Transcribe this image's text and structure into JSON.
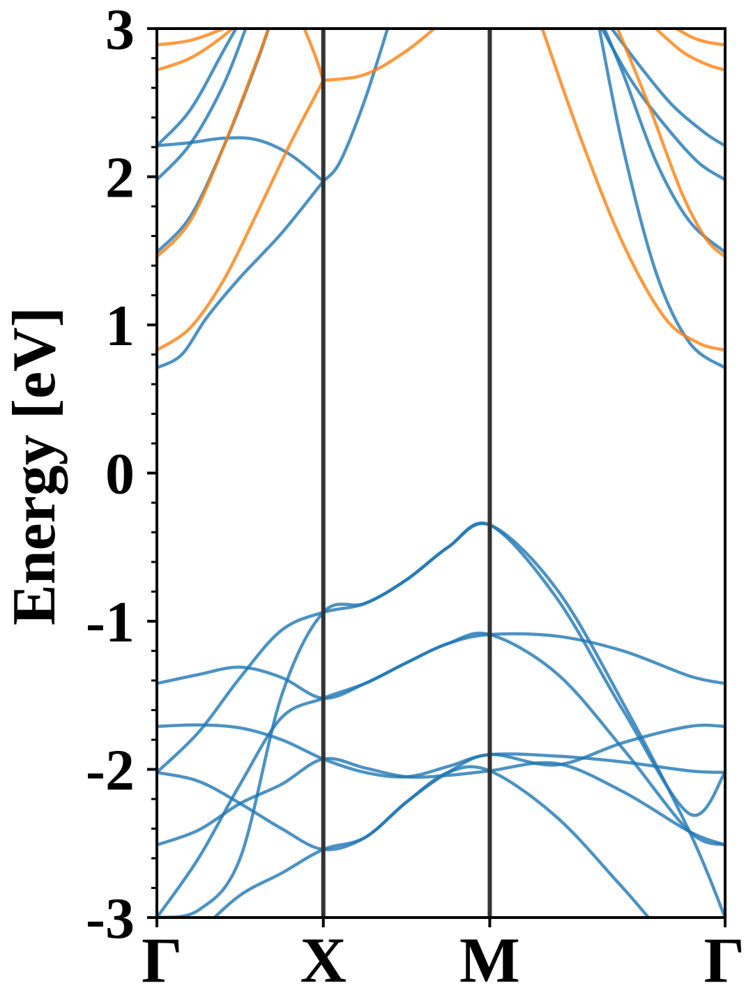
{
  "chart_data": {
    "type": "line",
    "title": "",
    "xlabel": "",
    "ylabel": "Energy [eV]",
    "ylim": [
      -3,
      3
    ],
    "yticks": [
      "3",
      "2",
      "1",
      "0",
      "-1",
      "-2",
      "-3"
    ],
    "ytick_values": [
      3,
      2,
      1,
      0,
      -1,
      -2,
      -3
    ],
    "minor_ytick_step": 0.2,
    "kpath_labels": [
      "Γ",
      "X",
      "M",
      "Γ"
    ],
    "kpath_positions": [
      0,
      1,
      2,
      3.414
    ],
    "grid": false,
    "legend": "none",
    "colors": {
      "valence": "#1f77b4",
      "conduction_blue": "#1f77b4",
      "conduction_orange": "#ff7f0e",
      "kline": "#333333",
      "axis": "#000000"
    },
    "series": [
      {
        "group": "valence",
        "x": [
          0,
          0.25,
          0.5,
          0.75,
          1,
          1.25,
          1.5,
          1.75,
          2,
          2.4,
          2.8,
          3.2,
          3.414
        ],
        "y": [
          -1.42,
          -1.36,
          -1.31,
          -1.38,
          -1.52,
          -1.42,
          -1.28,
          -1.15,
          -1.09,
          -1.1,
          -1.2,
          -1.37,
          -1.42
        ]
      },
      {
        "group": "valence",
        "x": [
          0,
          0.25,
          0.5,
          0.75,
          1,
          1.25,
          1.5,
          1.75,
          2,
          2.4,
          2.8,
          3.2,
          3.414
        ],
        "y": [
          -1.71,
          -1.7,
          -1.72,
          -1.8,
          -1.93,
          -2.02,
          -2.05,
          -1.98,
          -1.9,
          -1.91,
          -1.95,
          -2.01,
          -2.02
        ]
      },
      {
        "group": "valence",
        "x": [
          0,
          0.25,
          0.5,
          0.75,
          1,
          1.25,
          1.5,
          1.75,
          2,
          2.4,
          2.8,
          3.2,
          3.414
        ],
        "y": [
          -2.02,
          -2.08,
          -2.23,
          -2.4,
          -2.54,
          -2.46,
          -2.22,
          -2.02,
          -1.9,
          -1.97,
          -1.82,
          -1.71,
          -1.71
        ]
      },
      {
        "group": "valence",
        "x": [
          0,
          0.25,
          0.5,
          0.75,
          1,
          1.25,
          1.5,
          1.75,
          2,
          2.4,
          2.8,
          3.2,
          3.414
        ],
        "y": [
          -2.51,
          -2.41,
          -2.23,
          -2.1,
          -1.93,
          -1.99,
          -2.05,
          -2.04,
          -2.01,
          -1.96,
          -2.15,
          -2.42,
          -2.51
        ]
      },
      {
        "group": "valence",
        "x": [
          0,
          0.25,
          0.5,
          0.75,
          1,
          1.25,
          1.5,
          1.75,
          2,
          2.4,
          2.8,
          3.2,
          3.414
        ],
        "y": [
          -3.0,
          -2.6,
          -2.1,
          -1.65,
          -1.52,
          -1.42,
          -1.28,
          -1.15,
          -1.09,
          -1.35,
          -1.86,
          -2.42,
          -2.51
        ]
      },
      {
        "group": "valence",
        "x": [
          0,
          0.25,
          0.5,
          0.75,
          1,
          1.25,
          1.5,
          1.75,
          2,
          2.4,
          2.8,
          3.2,
          3.414
        ],
        "y": [
          -2.02,
          -1.75,
          -1.38,
          -1.06,
          -0.94,
          -0.88,
          -0.72,
          -0.5,
          -0.35,
          -0.78,
          -1.55,
          -2.42,
          -3.0
        ]
      },
      {
        "group": "valence",
        "x": [
          0,
          0.25,
          0.5,
          0.75,
          1,
          1.25,
          1.5,
          1.75,
          2,
          2.4,
          2.8,
          3.2,
          3.414
        ],
        "y": [
          -3.0,
          -2.95,
          -2.6,
          -1.5,
          -0.94,
          -0.88,
          -0.72,
          -0.5,
          -0.35,
          -0.84,
          -1.6,
          -2.3,
          -2.02
        ]
      },
      {
        "group": "valence",
        "x": [
          0,
          0.25,
          0.5,
          0.75,
          1,
          1.25,
          1.5,
          1.75,
          2,
          2.4,
          2.8,
          3.2,
          3.414
        ],
        "y": [
          -3.35,
          -3.1,
          -2.85,
          -2.7,
          -2.54,
          -2.46,
          -2.22,
          -2.02,
          -2.01,
          -2.32,
          -2.8,
          -3.3,
          -3.35
        ]
      },
      {
        "group": "conduction_blue",
        "x": [
          0,
          0.15,
          0.3,
          0.5,
          0.75,
          1
        ],
        "y": [
          0.71,
          0.8,
          1.05,
          1.32,
          1.62,
          1.97
        ]
      },
      {
        "group": "conduction_blue",
        "x": [
          0,
          0.2,
          0.4,
          0.6,
          0.8,
          1
        ],
        "y": [
          2.21,
          2.23,
          2.26,
          2.25,
          2.15,
          1.97
        ]
      },
      {
        "group": "conduction_blue",
        "x": [
          0,
          0.2,
          0.4,
          0.6,
          0.7
        ],
        "y": [
          1.49,
          1.73,
          2.2,
          2.77,
          3.1
        ]
      },
      {
        "group": "conduction_blue",
        "x": [
          0,
          0.2,
          0.4,
          0.55
        ],
        "y": [
          1.98,
          2.22,
          2.62,
          3.05
        ]
      },
      {
        "group": "conduction_blue",
        "x": [
          0,
          0.2,
          0.4,
          0.55
        ],
        "y": [
          2.21,
          2.45,
          2.85,
          3.15
        ]
      },
      {
        "group": "conduction_blue",
        "x": [
          1,
          1.1,
          1.25,
          1.4
        ],
        "y": [
          1.97,
          2.1,
          2.52,
          3.05
        ]
      },
      {
        "group": "conduction_blue",
        "x": [
          2.65,
          2.8,
          3.0,
          3.2,
          3.414
        ],
        "y": [
          3.05,
          2.2,
          1.35,
          0.88,
          0.71
        ]
      },
      {
        "group": "conduction_blue",
        "x": [
          2.65,
          2.8,
          3.0,
          3.2,
          3.414
        ],
        "y": [
          3.1,
          2.7,
          2.1,
          1.7,
          1.49
        ]
      },
      {
        "group": "conduction_blue",
        "x": [
          2.65,
          2.85,
          3.05,
          3.25,
          3.414
        ],
        "y": [
          3.05,
          2.65,
          2.35,
          2.1,
          1.98
        ]
      },
      {
        "group": "conduction_blue",
        "x": [
          2.7,
          2.9,
          3.1,
          3.3,
          3.414
        ],
        "y": [
          3.05,
          2.75,
          2.48,
          2.29,
          2.21
        ]
      },
      {
        "group": "conduction_orange",
        "x": [
          0,
          0.2,
          0.4,
          0.6,
          0.8,
          1
        ],
        "y": [
          0.83,
          0.98,
          1.3,
          1.75,
          2.22,
          2.65
        ]
      },
      {
        "group": "conduction_orange",
        "x": [
          0,
          0.2,
          0.4,
          0.6,
          0.7
        ],
        "y": [
          1.46,
          1.7,
          2.2,
          2.78,
          3.1
        ]
      },
      {
        "group": "conduction_orange",
        "x": [
          0,
          0.2,
          0.4,
          0.6
        ],
        "y": [
          2.72,
          2.8,
          2.95,
          3.15
        ]
      },
      {
        "group": "conduction_orange",
        "x": [
          0,
          0.2,
          0.4,
          0.6
        ],
        "y": [
          2.89,
          2.92,
          3.0,
          3.1
        ]
      },
      {
        "group": "conduction_orange",
        "x": [
          0.85,
          0.95,
          1
        ],
        "y": [
          3.1,
          2.82,
          2.65
        ]
      },
      {
        "group": "conduction_orange",
        "x": [
          1,
          1.25,
          1.5,
          1.75
        ],
        "y": [
          2.65,
          2.69,
          2.85,
          3.08
        ]
      },
      {
        "group": "conduction_orange",
        "x": [
          2.3,
          2.55,
          2.8,
          3.05,
          3.25,
          3.414
        ],
        "y": [
          3.05,
          2.25,
          1.55,
          1.05,
          0.88,
          0.83
        ]
      },
      {
        "group": "conduction_orange",
        "x": [
          2.75,
          2.95,
          3.15,
          3.3,
          3.414
        ],
        "y": [
          3.05,
          2.5,
          1.9,
          1.58,
          1.46
        ]
      },
      {
        "group": "conduction_orange",
        "x": [
          2.95,
          3.15,
          3.3,
          3.414
        ],
        "y": [
          3.05,
          2.85,
          2.76,
          2.72
        ]
      },
      {
        "group": "conduction_orange",
        "x": [
          3.05,
          3.2,
          3.3,
          3.414
        ],
        "y": [
          3.05,
          2.95,
          2.91,
          2.89
        ]
      }
    ]
  }
}
